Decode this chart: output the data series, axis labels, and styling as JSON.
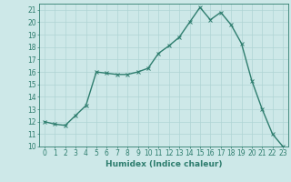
{
  "x": [
    0,
    1,
    2,
    3,
    4,
    5,
    6,
    7,
    8,
    9,
    10,
    11,
    12,
    13,
    14,
    15,
    16,
    17,
    18,
    19,
    20,
    21,
    22,
    23
  ],
  "y": [
    12,
    11.8,
    11.7,
    12.5,
    13.3,
    16.0,
    15.9,
    15.8,
    15.8,
    16.0,
    16.3,
    17.5,
    18.1,
    18.8,
    20.0,
    21.2,
    20.2,
    20.8,
    19.8,
    18.3,
    15.3,
    13.0,
    11.0,
    10.0
  ],
  "line_color": "#2e7d6e",
  "marker": "x",
  "marker_size": 3,
  "line_width": 1.0,
  "xlabel": "Humidex (Indice chaleur)",
  "xlim": [
    -0.5,
    23.5
  ],
  "ylim": [
    10,
    21.5
  ],
  "yticks": [
    10,
    11,
    12,
    13,
    14,
    15,
    16,
    17,
    18,
    19,
    20,
    21
  ],
  "xticks": [
    0,
    1,
    2,
    3,
    4,
    5,
    6,
    7,
    8,
    9,
    10,
    11,
    12,
    13,
    14,
    15,
    16,
    17,
    18,
    19,
    20,
    21,
    22,
    23
  ],
  "bg_color": "#cde8e8",
  "grid_color": "#afd4d4",
  "label_fontsize": 6.5,
  "tick_fontsize": 5.5
}
